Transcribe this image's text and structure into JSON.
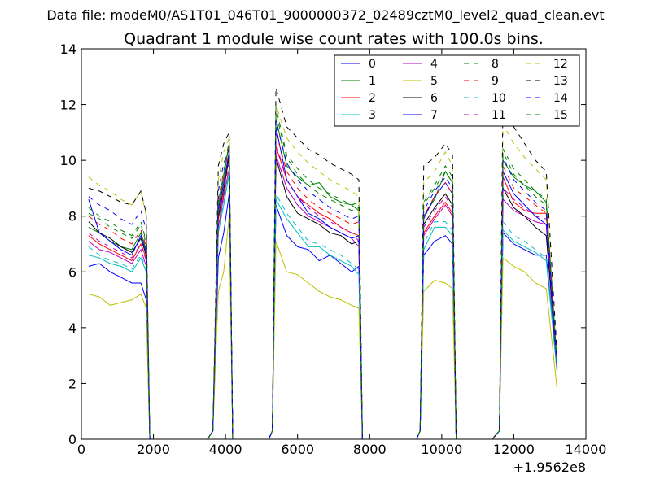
{
  "chart_data": {
    "type": "line",
    "suptitle": "Data file: modeM0/AS1T01_046T01_9000000372_02489cztM0_level2_quad_clean.evt",
    "title": "Quadrant 1 module wise count rates with 100.0s bins.",
    "xlabel": "",
    "ylabel": "",
    "x_offset_label": "+1.9562e8",
    "xlim": [
      0,
      14000
    ],
    "ylim": [
      0,
      14
    ],
    "xticks": [
      "0",
      "2000",
      "4000",
      "6000",
      "8000",
      "10000",
      "12000",
      "14000"
    ],
    "yticks": [
      "0",
      "2",
      "4",
      "6",
      "8",
      "10",
      "12",
      "14"
    ],
    "grid": false,
    "legend_position": "upper-right",
    "x": [
      200,
      500,
      800,
      1100,
      1400,
      1650,
      1800,
      1900,
      3500,
      3650,
      3800,
      3950,
      4100,
      4200,
      5200,
      5300,
      5400,
      5700,
      6000,
      6300,
      6600,
      6900,
      7200,
      7500,
      7700,
      7800,
      9300,
      9400,
      9500,
      9800,
      10100,
      10300,
      10400,
      11400,
      11600,
      11700,
      12000,
      12300,
      12600,
      12900,
      13200
    ],
    "series": [
      {
        "name": "0",
        "color": "#0000ff",
        "dash": "solid",
        "values": [
          6.2,
          6.3,
          6.0,
          5.8,
          5.6,
          5.6,
          5.0,
          0,
          0,
          0.3,
          6.5,
          7.4,
          8.8,
          0,
          0,
          0.3,
          8.4,
          7.3,
          6.9,
          6.8,
          6.4,
          6.6,
          6.3,
          6.0,
          6.2,
          0,
          0,
          0.3,
          6.6,
          7.1,
          7.3,
          7.0,
          0,
          0,
          0.3,
          7.4,
          7.0,
          6.8,
          6.6,
          6.6,
          2.5
        ]
      },
      {
        "name": "1",
        "color": "#008000",
        "dash": "solid",
        "values": [
          7.6,
          7.4,
          7.1,
          6.9,
          6.8,
          7.4,
          6.8,
          0,
          0,
          0.3,
          8.3,
          9.4,
          10.6,
          0,
          0,
          0.3,
          11.5,
          9.8,
          9.4,
          9.1,
          9.2,
          8.7,
          8.5,
          8.4,
          8.2,
          0,
          0,
          0.3,
          8.0,
          8.6,
          9.6,
          9.2,
          0,
          0,
          0.3,
          10.0,
          9.4,
          9.1,
          8.9,
          8.5,
          2.6
        ]
      },
      {
        "name": "2",
        "color": "#ff0000",
        "dash": "solid",
        "values": [
          7.3,
          7.0,
          6.8,
          6.6,
          6.4,
          7.0,
          6.5,
          0,
          0,
          0.3,
          7.9,
          8.8,
          10.3,
          0,
          0,
          0.3,
          10.5,
          9.3,
          8.7,
          8.4,
          8.1,
          7.9,
          7.6,
          7.4,
          7.3,
          0,
          0,
          0.3,
          7.4,
          8.0,
          8.5,
          8.1,
          0,
          0,
          0.3,
          9.4,
          8.5,
          8.2,
          8.1,
          8.1,
          2.5
        ]
      },
      {
        "name": "3",
        "color": "#00bfbf",
        "dash": "solid",
        "values": [
          6.6,
          6.5,
          6.3,
          6.2,
          6.0,
          6.5,
          6.0,
          0,
          0,
          0.3,
          7.4,
          8.4,
          9.5,
          0,
          0,
          0.3,
          8.6,
          7.9,
          7.4,
          6.9,
          6.9,
          6.6,
          6.4,
          6.2,
          5.9,
          0,
          0,
          0.3,
          6.8,
          7.6,
          7.6,
          7.3,
          0,
          0,
          0.3,
          7.5,
          7.1,
          6.9,
          6.7,
          6.4,
          2.4
        ]
      },
      {
        "name": "4",
        "color": "#bf00bf",
        "dash": "solid",
        "values": [
          7.1,
          6.8,
          6.7,
          6.5,
          6.3,
          6.8,
          6.2,
          0,
          0,
          0.3,
          7.6,
          8.7,
          9.7,
          0,
          0,
          0.3,
          10.2,
          9.0,
          8.4,
          8.0,
          7.8,
          7.6,
          7.4,
          7.2,
          6.9,
          0,
          0,
          0.3,
          7.3,
          7.9,
          8.4,
          8.0,
          0,
          0,
          0.3,
          8.6,
          8.2,
          8.0,
          7.8,
          7.7,
          2.5
        ]
      },
      {
        "name": "5",
        "color": "#bfbf00",
        "dash": "solid",
        "values": [
          5.2,
          5.1,
          4.8,
          4.9,
          5.0,
          5.2,
          4.7,
          0,
          0,
          0.3,
          5.3,
          6.0,
          8.0,
          0,
          0,
          0.3,
          7.1,
          6.0,
          5.9,
          5.6,
          5.3,
          5.1,
          5.0,
          4.8,
          4.7,
          0,
          0,
          0.3,
          5.3,
          5.7,
          5.6,
          5.4,
          0,
          0,
          0.3,
          6.5,
          6.2,
          6.0,
          5.6,
          5.4,
          1.8
        ]
      },
      {
        "name": "6",
        "color": "#000000",
        "dash": "solid",
        "values": [
          7.8,
          7.4,
          7.2,
          6.9,
          6.7,
          7.2,
          6.6,
          0,
          0,
          0.3,
          8.0,
          9.0,
          10.1,
          0,
          0,
          0.3,
          10.1,
          8.7,
          8.1,
          7.9,
          7.7,
          7.4,
          7.3,
          7.0,
          7.1,
          0,
          0,
          0.3,
          7.7,
          8.3,
          8.8,
          8.4,
          0,
          0,
          0.3,
          9.0,
          8.3,
          8.0,
          7.6,
          7.3,
          2.6
        ]
      },
      {
        "name": "7",
        "color": "#0000ff",
        "dash": "solid",
        "values": [
          8.6,
          7.4,
          7.1,
          6.8,
          6.6,
          7.3,
          6.7,
          0,
          0,
          0.3,
          8.2,
          9.2,
          10.3,
          0,
          0,
          0.3,
          11.2,
          9.3,
          8.7,
          8.1,
          7.9,
          7.6,
          7.4,
          7.2,
          7.3,
          0,
          0,
          0.3,
          7.9,
          8.7,
          9.2,
          8.8,
          0,
          0,
          0.3,
          9.6,
          8.8,
          8.4,
          8.0,
          7.7,
          2.6
        ]
      },
      {
        "name": "8",
        "color": "#008000",
        "dash": "dashed",
        "values": [
          8.3,
          8.0,
          7.8,
          7.5,
          7.3,
          7.8,
          7.1,
          0,
          0,
          0.3,
          8.6,
          9.6,
          10.7,
          0,
          0,
          0.3,
          11.7,
          10.1,
          9.5,
          9.1,
          8.8,
          8.6,
          8.4,
          8.2,
          8.3,
          0,
          0,
          0.3,
          8.4,
          9.0,
          9.6,
          9.2,
          0,
          0,
          0.3,
          10.3,
          9.5,
          9.1,
          8.7,
          8.4,
          2.7
        ]
      },
      {
        "name": "9",
        "color": "#ff0000",
        "dash": "dashed",
        "values": [
          8.0,
          7.7,
          7.5,
          7.2,
          7.0,
          7.5,
          6.9,
          0,
          0,
          0.3,
          8.4,
          9.4,
          10.5,
          0,
          0,
          0.3,
          11.0,
          9.6,
          9.0,
          8.6,
          8.3,
          8.1,
          7.9,
          7.7,
          7.8,
          0,
          0,
          0.3,
          8.0,
          8.7,
          9.2,
          8.8,
          0,
          0,
          0.3,
          9.8,
          9.0,
          8.7,
          8.4,
          8.1,
          2.6
        ]
      },
      {
        "name": "10",
        "color": "#00bfbf",
        "dash": "dashed",
        "values": [
          6.9,
          6.6,
          6.4,
          6.3,
          6.1,
          6.6,
          6.1,
          0,
          0,
          0.3,
          7.5,
          8.5,
          9.6,
          0,
          0,
          0.3,
          8.8,
          8.1,
          7.6,
          7.1,
          7.0,
          6.8,
          6.6,
          6.3,
          6.1,
          0,
          0,
          0.3,
          7.0,
          7.8,
          7.8,
          7.5,
          0,
          0,
          0.3,
          7.8,
          7.3,
          7.1,
          6.8,
          6.5,
          2.4
        ]
      },
      {
        "name": "11",
        "color": "#bf00bf",
        "dash": "dashed",
        "values": [
          7.4,
          7.1,
          6.9,
          6.7,
          6.5,
          7.0,
          6.4,
          0,
          0,
          0.3,
          7.8,
          8.9,
          9.9,
          0,
          0,
          0.3,
          10.6,
          9.3,
          8.7,
          8.3,
          8.0,
          7.8,
          7.6,
          7.4,
          7.1,
          0,
          0,
          0.3,
          7.6,
          8.2,
          8.7,
          8.3,
          0,
          0,
          0.3,
          9.0,
          8.6,
          8.3,
          8.0,
          7.9,
          2.5
        ]
      },
      {
        "name": "12",
        "color": "#bfbf00",
        "dash": "dashed",
        "values": [
          9.4,
          9.1,
          8.9,
          8.6,
          8.4,
          8.9,
          8.0,
          0,
          0,
          0.3,
          9.3,
          10.3,
          10.8,
          0,
          0,
          0.3,
          12.0,
          10.8,
          10.3,
          9.9,
          9.6,
          9.3,
          9.1,
          8.9,
          8.7,
          0,
          0,
          0.3,
          9.2,
          9.6,
          10.3,
          9.8,
          0,
          0,
          0.3,
          11.3,
          10.6,
          10.1,
          9.7,
          9.3,
          2.9
        ]
      },
      {
        "name": "13",
        "color": "#000000",
        "dash": "dashed",
        "values": [
          9.0,
          8.9,
          8.7,
          8.5,
          8.4,
          8.9,
          8.1,
          0,
          0,
          0.3,
          9.8,
          10.6,
          11.0,
          0,
          0,
          0.3,
          12.6,
          11.2,
          10.8,
          10.4,
          10.2,
          9.9,
          9.7,
          9.5,
          9.3,
          0,
          0,
          0.3,
          9.8,
          10.1,
          10.6,
          10.2,
          0,
          0,
          0.3,
          12.2,
          11.2,
          10.6,
          10.0,
          9.6,
          3.0
        ]
      },
      {
        "name": "14",
        "color": "#0000ff",
        "dash": "dashed",
        "values": [
          8.7,
          8.4,
          8.2,
          7.9,
          7.7,
          8.2,
          7.5,
          0,
          0,
          0.3,
          8.9,
          9.9,
          10.4,
          0,
          0,
          0.3,
          11.4,
          9.9,
          9.3,
          8.9,
          8.6,
          8.3,
          8.1,
          7.9,
          8.0,
          0,
          0,
          0.3,
          8.2,
          8.9,
          9.4,
          9.0,
          0,
          0,
          0.3,
          10.1,
          9.3,
          8.9,
          8.5,
          8.2,
          2.7
        ]
      },
      {
        "name": "15",
        "color": "#008000",
        "dash": "dashed",
        "values": [
          8.1,
          7.9,
          7.6,
          7.4,
          7.2,
          7.7,
          7.0,
          0,
          0,
          0.3,
          8.5,
          9.5,
          10.6,
          0,
          0,
          0.3,
          11.9,
          10.2,
          9.7,
          9.3,
          9.0,
          8.8,
          8.6,
          8.4,
          8.5,
          0,
          0,
          0.3,
          8.5,
          9.1,
          9.8,
          9.4,
          0,
          0,
          0.3,
          10.4,
          9.7,
          9.3,
          8.9,
          8.6,
          2.7
        ]
      }
    ]
  }
}
